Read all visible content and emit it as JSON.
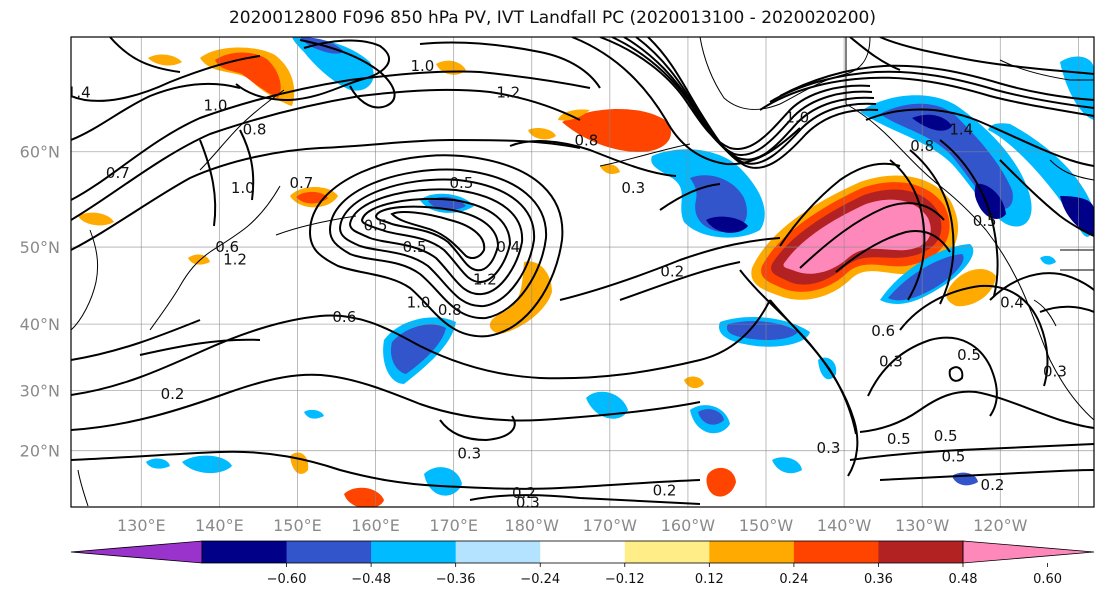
{
  "title": "2020012800 F096 850 hPa PV, IVT Landfall PC (2020013100 - 2020020200)",
  "lat_ticks": [
    {
      "value": 60,
      "label": "60°N"
    },
    {
      "value": 50,
      "label": "50°N"
    },
    {
      "value": 40,
      "label": "40°N"
    },
    {
      "value": 30,
      "label": "30°N"
    },
    {
      "value": 20,
      "label": "20°N"
    }
  ],
  "lon_ticks": [
    {
      "value": 130,
      "label": "130°E"
    },
    {
      "value": 140,
      "label": "140°E"
    },
    {
      "value": 150,
      "label": "150°E"
    },
    {
      "value": 160,
      "label": "160°E"
    },
    {
      "value": 170,
      "label": "170°E"
    },
    {
      "value": 180,
      "label": "180°W"
    },
    {
      "value": 190,
      "label": "170°W"
    },
    {
      "value": 200,
      "label": "160°W"
    },
    {
      "value": 210,
      "label": "150°W"
    },
    {
      "value": 220,
      "label": "140°W"
    },
    {
      "value": 230,
      "label": "130°W"
    },
    {
      "value": 240,
      "label": "120°W"
    }
  ],
  "map_extent": {
    "lon_min": 121,
    "lon_max": 252,
    "lat_min": 10,
    "lat_max": 69
  },
  "colorbar": {
    "colors": [
      "#9933cc",
      "#000088",
      "#3355cc",
      "#00bbff",
      "#b3e3ff",
      "#ffffff",
      "#ffee88",
      "#ffaa00",
      "#ff4400",
      "#b22222",
      "#ff88bb"
    ],
    "tick_labels": [
      "−0.60",
      "−0.48",
      "−0.36",
      "−0.24",
      "−0.12",
      "0.12",
      "0.24",
      "0.36",
      "0.48",
      "0.60"
    ]
  },
  "contour_labels": [
    {
      "text": "1.0",
      "lon": 139.5,
      "lat": 64
    },
    {
      "text": "0.8",
      "lon": 144.5,
      "lat": 62
    },
    {
      "text": "1.0",
      "lon": 166,
      "lat": 67
    },
    {
      "text": "1.2",
      "lon": 177,
      "lat": 65
    },
    {
      "text": "0.8",
      "lon": 187,
      "lat": 61
    },
    {
      "text": "0.5",
      "lon": 171,
      "lat": 57
    },
    {
      "text": "0.3",
      "lon": 193,
      "lat": 56.5
    },
    {
      "text": "1.0",
      "lon": 143,
      "lat": 56.5
    },
    {
      "text": "0.7",
      "lon": 150.5,
      "lat": 57
    },
    {
      "text": "0.5",
      "lon": 160,
      "lat": 52.5
    },
    {
      "text": "0.5",
      "lon": 165,
      "lat": 50
    },
    {
      "text": "0.4",
      "lon": 177,
      "lat": 50
    },
    {
      "text": "1.2",
      "lon": 174,
      "lat": 46
    },
    {
      "text": "1.0",
      "lon": 165.5,
      "lat": 43
    },
    {
      "text": "0.8",
      "lon": 169.5,
      "lat": 42
    },
    {
      "text": "0.6",
      "lon": 156,
      "lat": 41
    },
    {
      "text": "0.2",
      "lon": 198,
      "lat": 47
    },
    {
      "text": "1.0",
      "lon": 214,
      "lat": 63
    },
    {
      "text": "1.4",
      "lon": 235,
      "lat": 62
    },
    {
      "text": "0.8",
      "lon": 230,
      "lat": 60.5
    },
    {
      "text": "0.5",
      "lon": 238,
      "lat": 53
    },
    {
      "text": "0.4",
      "lon": 241.5,
      "lat": 43
    },
    {
      "text": "0.6",
      "lon": 225,
      "lat": 39
    },
    {
      "text": "0.3",
      "lon": 226,
      "lat": 34.5
    },
    {
      "text": "0.5",
      "lon": 236,
      "lat": 35.5
    },
    {
      "text": "0.3",
      "lon": 247,
      "lat": 33
    },
    {
      "text": "0.3",
      "lon": 218,
      "lat": 20.5
    },
    {
      "text": "0.5",
      "lon": 227,
      "lat": 22
    },
    {
      "text": "0.5",
      "lon": 233,
      "lat": 22.5
    },
    {
      "text": "0.5",
      "lon": 234,
      "lat": 19
    },
    {
      "text": "0.2",
      "lon": 239,
      "lat": 14
    },
    {
      "text": "0.2",
      "lon": 197,
      "lat": 13
    },
    {
      "text": "0.2",
      "lon": 179,
      "lat": 12.5
    },
    {
      "text": "0.3",
      "lon": 179.5,
      "lat": 10.8
    },
    {
      "text": "0.3",
      "lon": 172,
      "lat": 19.5
    },
    {
      "text": "0.2",
      "lon": 134,
      "lat": 29.5
    },
    {
      "text": "0.7",
      "lon": 127,
      "lat": 58
    },
    {
      "text": "0.6",
      "lon": 141,
      "lat": 50
    },
    {
      "text": "1.2",
      "lon": 142,
      "lat": 48.5
    },
    {
      "text": "1.4",
      "lon": 122,
      "lat": 65
    }
  ]
}
